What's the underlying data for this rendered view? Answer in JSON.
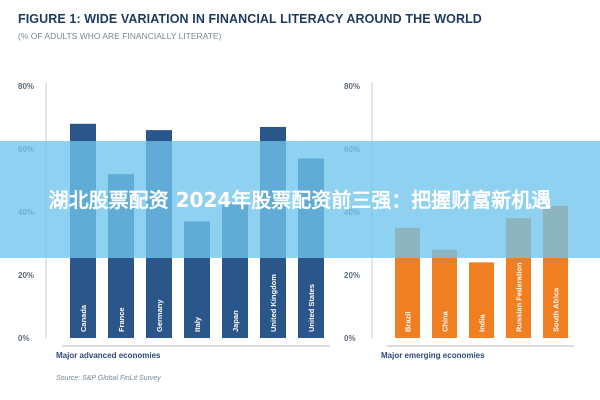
{
  "title": "FIGURE 1: WIDE VARIATION IN FINANCIAL LITERACY AROUND THE WORLD",
  "subtitle": "(% OF ADULTS WHO ARE FINANCIALLY LITERATE)",
  "source": "Source: S&P Global FinLit Survey",
  "overlay_text": "湖北股票配资 2024年股票配资前三强：把握财富新机遇",
  "colors": {
    "title": "#1f3a5f",
    "advanced_bar": "#2b5689",
    "emerging_bar": "#f07f22",
    "axis_text": "#5f6b78",
    "group_label": "#2b4a78",
    "overlay": "#6fc4ec"
  },
  "chart_data": [
    {
      "type": "bar",
      "group_label": "Major advanced economies",
      "categories": [
        "Canada",
        "France",
        "Germany",
        "Italy",
        "Japan",
        "United Kingdom",
        "United States"
      ],
      "values": [
        68,
        52,
        66,
        37,
        43,
        67,
        57
      ],
      "ylim": [
        0,
        80
      ],
      "yticks": [
        "0%",
        "20%",
        "40%",
        "60%",
        "80%"
      ],
      "color": "#2b5689"
    },
    {
      "type": "bar",
      "group_label": "Major emerging economies",
      "categories": [
        "Brazil",
        "China",
        "India",
        "Russian Federation",
        "South Africa"
      ],
      "values": [
        35,
        28,
        24,
        38,
        42
      ],
      "ylim": [
        0,
        80
      ],
      "yticks": [
        "0%",
        "20%",
        "40%",
        "60%",
        "80%"
      ],
      "color": "#f07f22"
    }
  ]
}
